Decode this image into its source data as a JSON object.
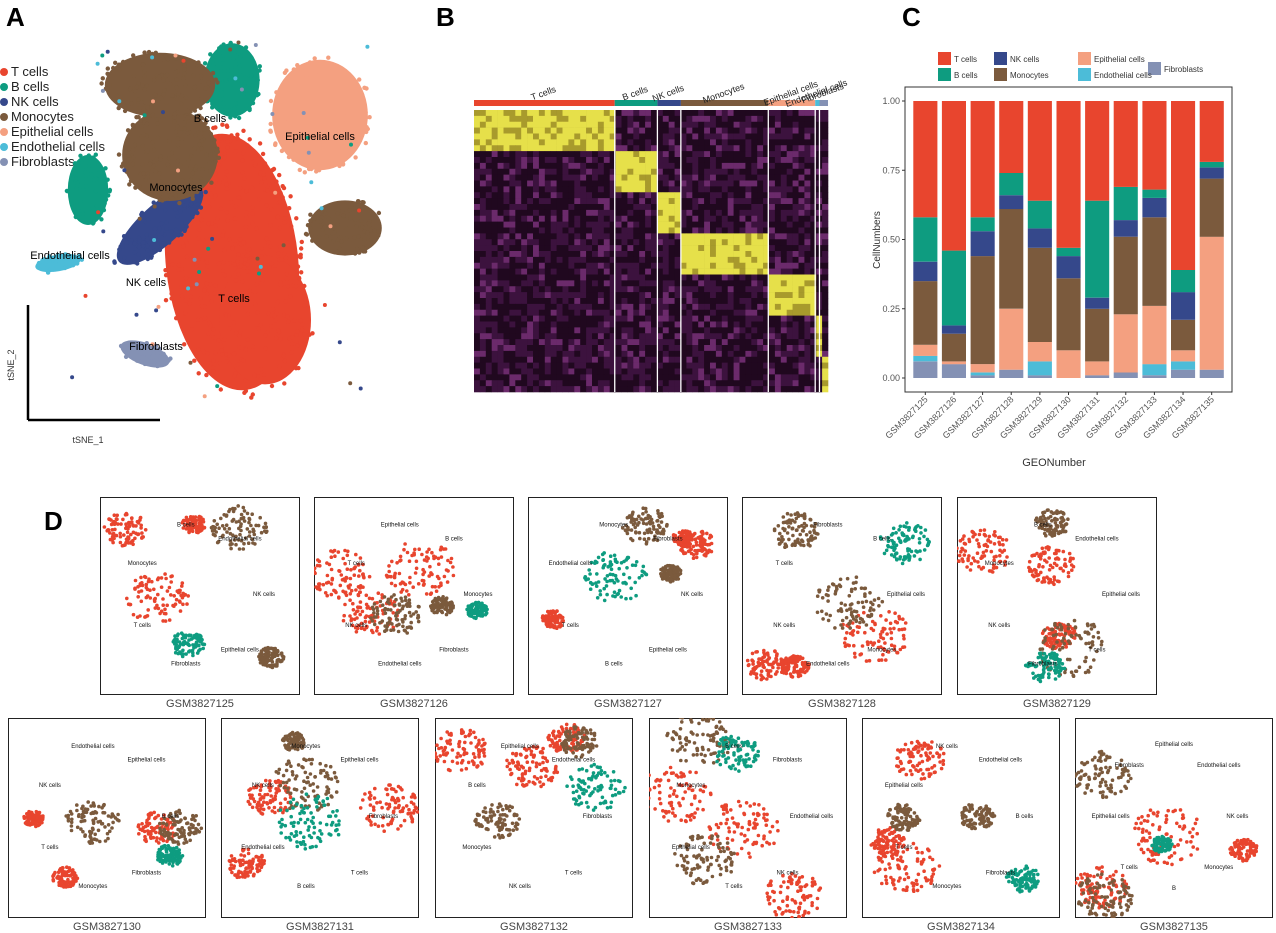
{
  "panels": {
    "a": "A",
    "b": "B",
    "c": "C",
    "d": "D"
  },
  "colors": {
    "T cells": "#e8452e",
    "B cells": "#0e9c80",
    "NK cells": "#35488b",
    "Monocytes": "#7b5a3d",
    "Epithelial cells": "#f4a080",
    "Endothelial cells": "#4cbcd8",
    "Fibroblasts": "#8491b4"
  },
  "cell_types": [
    "T cells",
    "B cells",
    "NK cells",
    "Monocytes",
    "Epithelial cells",
    "Endothelial cells",
    "Fibroblasts"
  ],
  "panel_a": {
    "xlabel": "tSNE_1",
    "ylabel": "tSNE_2",
    "cluster_labels": {
      "tcells": "T cells",
      "bcells": "B cells",
      "nkcells": "NK cells",
      "monocytes": "Monocytes",
      "epithelial": "Epithelial cells",
      "endothelial": "Endothelial cells",
      "fibroblasts": "Fibroblasts"
    }
  },
  "panel_b": {
    "groups": [
      "T cells",
      "B cells",
      "NK cells",
      "Monocytes",
      "Epithelial cells",
      "Endothelial cells",
      "Fibroblasts"
    ],
    "group_fractions": [
      0.33,
      0.1,
      0.055,
      0.205,
      0.11,
      0.01,
      0.02
    ]
  },
  "chart_data": {
    "type": "bar",
    "stacked": true,
    "title": "",
    "xlabel": "GEONumber",
    "ylabel": "CellNumbers",
    "ylim": [
      0,
      1
    ],
    "yticks": [
      "0.00",
      "0.25",
      "0.50",
      "0.75",
      "1.00"
    ],
    "categories": [
      "GSM3827125",
      "GSM3827126",
      "GSM3827127",
      "GSM3827128",
      "GSM3827129",
      "GSM3827130",
      "GSM3827131",
      "GSM3827132",
      "GSM3827133",
      "GSM3827134",
      "GSM3827135"
    ],
    "legend": [
      "T cells",
      "NK cells",
      "Epithelial cells",
      "Fibroblasts",
      "B cells",
      "Monocytes",
      "Endothelial cells"
    ],
    "series": [
      {
        "name": "Fibroblasts",
        "values": [
          0.06,
          0.05,
          0.01,
          0.03,
          0.01,
          0.0,
          0.01,
          0.02,
          0.01,
          0.03,
          0.03
        ]
      },
      {
        "name": "Endothelial cells",
        "values": [
          0.02,
          0.0,
          0.01,
          0.0,
          0.05,
          0.0,
          0.0,
          0.0,
          0.04,
          0.03,
          0.0
        ]
      },
      {
        "name": "Epithelial cells",
        "values": [
          0.04,
          0.01,
          0.03,
          0.22,
          0.07,
          0.1,
          0.05,
          0.21,
          0.21,
          0.04,
          0.48
        ]
      },
      {
        "name": "Monocytes",
        "values": [
          0.23,
          0.1,
          0.39,
          0.36,
          0.34,
          0.26,
          0.19,
          0.28,
          0.32,
          0.11,
          0.21
        ]
      },
      {
        "name": "NK cells",
        "values": [
          0.07,
          0.03,
          0.09,
          0.05,
          0.07,
          0.08,
          0.04,
          0.06,
          0.07,
          0.1,
          0.04
        ]
      },
      {
        "name": "B cells",
        "values": [
          0.16,
          0.27,
          0.05,
          0.08,
          0.1,
          0.03,
          0.35,
          0.12,
          0.03,
          0.08,
          0.02
        ]
      },
      {
        "name": "T cells",
        "values": [
          0.42,
          0.54,
          0.42,
          0.26,
          0.36,
          0.53,
          0.36,
          0.31,
          0.32,
          0.61,
          0.22
        ]
      }
    ]
  },
  "panel_d": {
    "samples": [
      {
        "id": "GSM3827125",
        "labels": [
          "NK cells",
          "Epithelial cells",
          "Fibroblasts",
          "T cells",
          "Monocytes",
          "B cells",
          "Endothelial cells"
        ]
      },
      {
        "id": "GSM3827126",
        "labels": [
          "Monocytes",
          "Fibroblasts",
          "Endothelial cells",
          "NK cells",
          "T cells",
          "Epithelial cells",
          "B cells"
        ]
      },
      {
        "id": "GSM3827127",
        "labels": [
          "NK cells",
          "Epithelial cells",
          "B cells",
          "T cells",
          "Endothelial cells",
          "Monocytes",
          "Fibroblasts"
        ]
      },
      {
        "id": "GSM3827128",
        "labels": [
          "Epithelial cells",
          "Monocytes",
          "Endothelial cells",
          "NK cells",
          "T cells",
          "Fibroblasts",
          "B cells"
        ]
      },
      {
        "id": "GSM3827129",
        "labels": [
          "Epithelial cells",
          "T cells",
          "Fibroblasts",
          "NK cells",
          "Monocytes",
          "B cells",
          "Endothelial cells"
        ]
      },
      {
        "id": "GSM3827130",
        "labels": [
          "B cells",
          "Fibroblasts",
          "Monocytes",
          "T cells",
          "NK cells",
          "Endothelial cells",
          "Epithelial cells"
        ]
      },
      {
        "id": "GSM3827131",
        "labels": [
          "Fibroblasts",
          "T cells",
          "B cells",
          "Endothelial cells",
          "NK cells",
          "Monocytes",
          "Epithelial cells"
        ]
      },
      {
        "id": "GSM3827132",
        "labels": [
          "Fibroblasts",
          "T cells",
          "NK cells",
          "Monocytes",
          "B cells",
          "Epithelial cells",
          "Endothelial cells"
        ]
      },
      {
        "id": "GSM3827133",
        "labels": [
          "Endothelial cells",
          "NK cells",
          "T cells",
          "Epithelial cells",
          "Monocytes",
          "B cells",
          "Fibroblasts"
        ]
      },
      {
        "id": "GSM3827134",
        "labels": [
          "B cells",
          "Fibroblasts",
          "Monocytes",
          "T cells",
          "Epithelial cells",
          "NK cells",
          "Endothelial cells"
        ]
      },
      {
        "id": "GSM3827135",
        "labels": [
          "NK cells",
          "Monocytes",
          "B",
          "T cells",
          "Epithelial cells",
          "Fibroblasts",
          "Epithelial cells",
          "Endothelial cells"
        ]
      }
    ]
  }
}
